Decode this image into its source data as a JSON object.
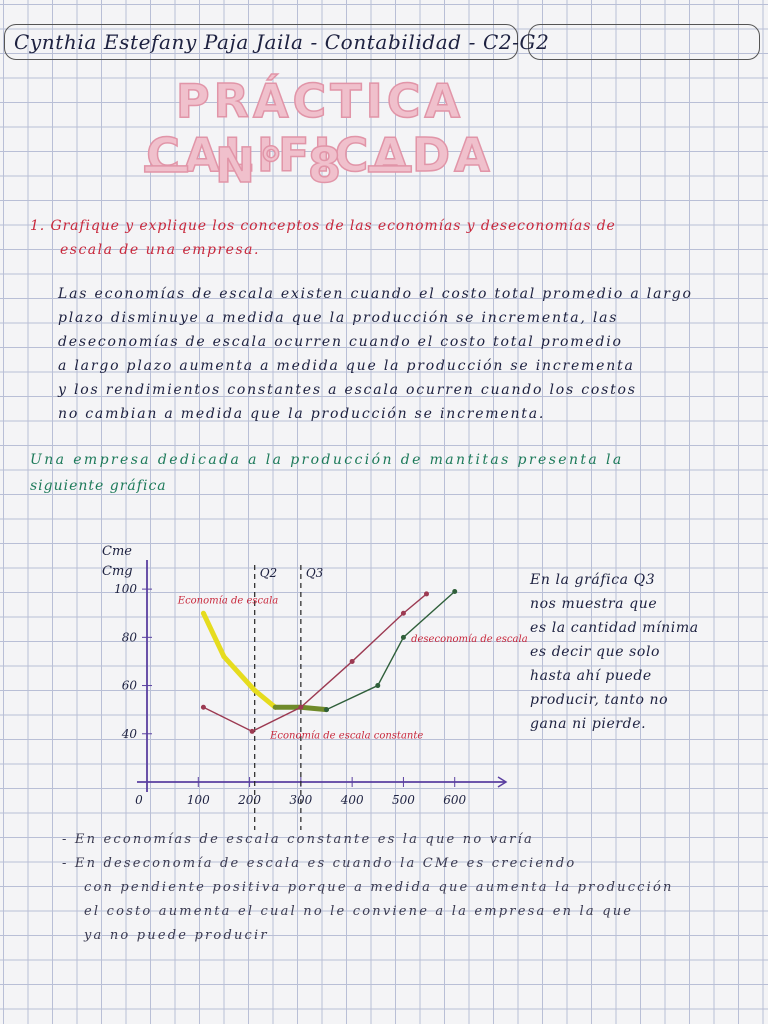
{
  "header": {
    "name": "Cynthia Estefany Paja Jaila - Contabilidad - C2-G2"
  },
  "title": {
    "line1": "PRÁCTICA CALIFICADA",
    "line2": "— N° 8 —"
  },
  "question": [
    "1. Grafique y explique los conceptos de las economías y deseconomías de",
    "escala de una empresa."
  ],
  "answer": [
    "Las economías de escala existen cuando el costo total promedio a largo",
    "plazo disminuye a medida que la producción se incrementa, las",
    "deseconomías de escala ocurren cuando el costo total promedio",
    "a largo plazo aumenta a medida que la producción se incrementa",
    "y los rendimientos constantes a escala ocurren cuando los costos",
    "no cambian a medida que la producción se incrementa."
  ],
  "intro": [
    "Una empresa dedicada a la producción de mantitas presenta la",
    "siguiente gráfica"
  ],
  "chart_data": {
    "type": "line",
    "ylabel": [
      "Cme",
      "Cmg"
    ],
    "xlim": [
      0,
      700
    ],
    "ylim": [
      20,
      110
    ],
    "xticks": [
      0,
      100,
      200,
      300,
      400,
      500,
      600
    ],
    "yticks": [
      40,
      60,
      80,
      100
    ],
    "vlines": [
      {
        "x": 210,
        "label": "Q2"
      },
      {
        "x": 300,
        "label": "Q3"
      }
    ],
    "series": [
      {
        "color": "#e6dc1e",
        "x": [
          110,
          150,
          210,
          250
        ],
        "values": [
          90,
          72,
          58,
          51
        ]
      },
      {
        "color": "#6f8a2a",
        "x": [
          250,
          300,
          350
        ],
        "values": [
          51,
          51,
          50
        ]
      },
      {
        "color": "#2f5f3a",
        "x": [
          350,
          450,
          500,
          600
        ],
        "values": [
          50,
          60,
          80,
          99
        ]
      },
      {
        "color": "#9c3a52",
        "x": [
          110,
          205,
          300,
          400,
          500,
          545
        ],
        "values": [
          51,
          41,
          51,
          70,
          90,
          98
        ]
      }
    ],
    "annotations": [
      {
        "text": "Economía de escala",
        "x": 60,
        "y": 94,
        "color": "#c8283c"
      },
      {
        "text": "deseconomía de escala",
        "x": 515,
        "y": 78,
        "color": "#c8283c"
      },
      {
        "text": "Economía de escala constante",
        "x": 240,
        "y": 38,
        "color": "#c8283c"
      }
    ]
  },
  "note": [
    "En la gráfica Q3",
    "nos muestra que",
    "es la cantidad mínima",
    "es decir que solo",
    "hasta ahí puede",
    "producir, tanto no",
    "gana ni pierde."
  ],
  "conclusions": [
    "- En economías de escala constante es la que no varía",
    "- En deseconomía de escala es cuando la CMe es creciendo",
    "con pendiente positiva porque a medida que aumenta la producción",
    "el costo aumenta el cual no le conviene a la empresa en la que",
    "ya no puede producir"
  ]
}
